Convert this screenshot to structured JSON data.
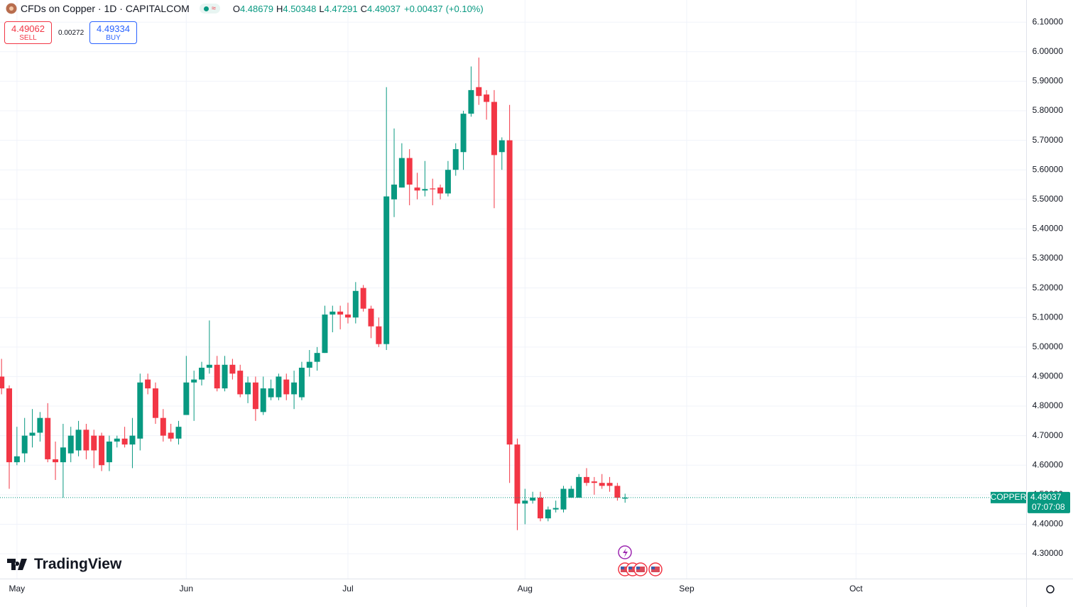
{
  "chart_data": {
    "type": "candlestick",
    "title": "CFDs on Copper · 1D · CAPITALCOM",
    "legend_labels": [
      "O",
      "H",
      "L",
      "C"
    ],
    "change": "+0.00437",
    "change_percent": "(+0.10%)",
    "trade": {
      "sell": 4.49062,
      "sell_label": "SELL",
      "spread": 0.00272,
      "buy": 4.49334,
      "buy_label": "BUY"
    },
    "watermark": "TradingView",
    "countdown": "07:07:08",
    "up_color": "#089981",
    "down_color": "#f23645",
    "grid": true,
    "xlim": [
      -0.2,
      133.1
    ],
    "xticks": [
      {
        "value": 2,
        "label": "May"
      },
      {
        "value": 24,
        "label": "Jun"
      },
      {
        "value": 45,
        "label": "Jul"
      },
      {
        "value": 68,
        "label": "Aug"
      },
      {
        "value": 89,
        "label": "Sep"
      },
      {
        "value": 111,
        "label": "Oct"
      }
    ],
    "ylim": [
      4.216,
      6.175
    ],
    "yticks": [
      {
        "value": 4.3,
        "label": "4.30000"
      },
      {
        "value": 4.4,
        "label": "4.40000"
      },
      {
        "value": 4.5,
        "label": "4.50000"
      },
      {
        "value": 4.6,
        "label": "4.60000"
      },
      {
        "value": 4.7,
        "label": "4.70000"
      },
      {
        "value": 4.8,
        "label": "4.80000"
      },
      {
        "value": 4.9,
        "label": "4.90000"
      },
      {
        "value": 5.0,
        "label": "5.00000"
      },
      {
        "value": 5.1,
        "label": "5.10000"
      },
      {
        "value": 5.2,
        "label": "5.20000"
      },
      {
        "value": 5.3,
        "label": "5.30000"
      },
      {
        "value": 5.4,
        "label": "5.40000"
      },
      {
        "value": 5.5,
        "label": "5.50000"
      },
      {
        "value": 5.6,
        "label": "5.60000"
      },
      {
        "value": 5.7,
        "label": "5.70000"
      },
      {
        "value": 5.8,
        "label": "5.80000"
      },
      {
        "value": 5.9,
        "label": "5.90000"
      },
      {
        "value": 6.0,
        "label": "6.00000"
      },
      {
        "value": 6.1,
        "label": "6.10000"
      }
    ],
    "series": [
      {
        "name": "COPPER",
        "open": [
          4.9,
          4.86,
          4.61,
          4.64,
          4.7,
          4.71,
          4.76,
          4.62,
          4.61,
          4.64,
          4.65,
          4.72,
          4.7,
          4.7,
          4.61,
          4.68,
          4.69,
          4.67,
          4.69,
          4.89,
          4.86,
          4.76,
          4.71,
          4.69,
          4.77,
          4.88,
          4.89,
          4.93,
          4.94,
          4.86,
          4.94,
          4.92,
          4.84,
          4.88,
          4.78,
          4.83,
          4.83,
          4.89,
          4.84,
          4.83,
          4.93,
          4.95,
          4.98,
          5.11,
          5.12,
          5.11,
          5.1,
          5.2,
          5.13,
          5.07,
          5.01,
          5.5,
          5.54,
          5.64,
          5.54,
          5.53,
          5.537,
          5.54,
          5.52,
          5.6,
          5.66,
          5.79,
          5.88,
          5.855,
          5.83,
          5.66,
          5.7,
          4.67,
          4.47,
          4.48,
          4.49,
          4.42,
          4.45,
          4.45,
          4.49,
          4.49,
          4.56,
          4.545,
          4.54,
          4.54,
          4.53,
          4.48679
        ],
        "high": [
          4.96,
          4.87,
          4.73,
          4.76,
          4.79,
          4.78,
          4.81,
          4.68,
          4.74,
          4.73,
          4.75,
          4.74,
          4.72,
          4.71,
          4.7,
          4.7,
          4.73,
          4.76,
          4.91,
          4.91,
          4.88,
          4.79,
          4.74,
          4.75,
          4.97,
          4.92,
          4.95,
          5.09,
          4.97,
          4.97,
          4.96,
          4.94,
          4.9,
          4.9,
          4.9,
          4.89,
          4.91,
          4.91,
          4.92,
          4.95,
          4.99,
          5.0,
          5.14,
          5.14,
          5.14,
          5.15,
          5.22,
          5.21,
          5.14,
          5.1,
          5.88,
          5.74,
          5.69,
          5.67,
          5.59,
          5.63,
          5.57,
          5.55,
          5.63,
          5.69,
          5.8,
          5.95,
          5.98,
          5.87,
          5.87,
          5.71,
          5.82,
          4.69,
          4.52,
          4.51,
          4.51,
          4.46,
          4.48,
          4.53,
          4.53,
          4.57,
          4.59,
          4.56,
          4.57,
          4.56,
          4.54,
          4.50348
        ],
        "low": [
          4.84,
          4.52,
          4.6,
          4.61,
          4.66,
          4.68,
          4.61,
          4.55,
          4.49,
          4.61,
          4.63,
          4.62,
          4.59,
          4.58,
          4.58,
          4.66,
          4.66,
          4.59,
          4.65,
          4.84,
          4.74,
          4.68,
          4.68,
          4.67,
          4.77,
          4.75,
          4.87,
          4.91,
          4.85,
          4.85,
          4.89,
          4.83,
          4.81,
          4.75,
          4.77,
          4.82,
          4.82,
          4.82,
          4.79,
          4.82,
          4.9,
          4.92,
          4.98,
          5.05,
          5.06,
          5.08,
          5.08,
          5.12,
          5.03,
          5.0,
          4.99,
          5.44,
          5.54,
          5.48,
          5.5,
          5.51,
          5.48,
          5.5,
          5.51,
          5.58,
          5.6,
          5.78,
          5.82,
          5.77,
          5.47,
          5.6,
          4.54,
          4.38,
          4.4,
          4.47,
          4.41,
          4.41,
          4.44,
          4.44,
          4.49,
          4.49,
          4.53,
          4.5,
          4.52,
          4.51,
          4.48,
          4.47291
        ],
        "close": [
          4.86,
          4.61,
          4.63,
          4.7,
          4.71,
          4.76,
          4.62,
          4.61,
          4.66,
          4.7,
          4.72,
          4.65,
          4.65,
          4.6,
          4.68,
          4.69,
          4.67,
          4.7,
          4.88,
          4.86,
          4.76,
          4.7,
          4.69,
          4.73,
          4.88,
          4.89,
          4.93,
          4.94,
          4.86,
          4.94,
          4.91,
          4.84,
          4.88,
          4.79,
          4.86,
          4.86,
          4.9,
          4.84,
          4.88,
          4.93,
          4.95,
          4.98,
          5.11,
          5.12,
          5.11,
          5.1,
          5.19,
          5.13,
          5.07,
          5.01,
          5.51,
          5.55,
          5.64,
          5.55,
          5.53,
          5.535,
          5.534,
          5.52,
          5.6,
          5.67,
          5.79,
          5.87,
          5.85,
          5.83,
          5.65,
          5.7,
          4.67,
          4.47,
          4.48,
          4.49,
          4.42,
          4.45,
          4.455,
          4.52,
          4.52,
          4.56,
          4.54,
          4.54,
          4.53,
          4.53,
          4.49,
          4.49037
        ]
      }
    ]
  }
}
